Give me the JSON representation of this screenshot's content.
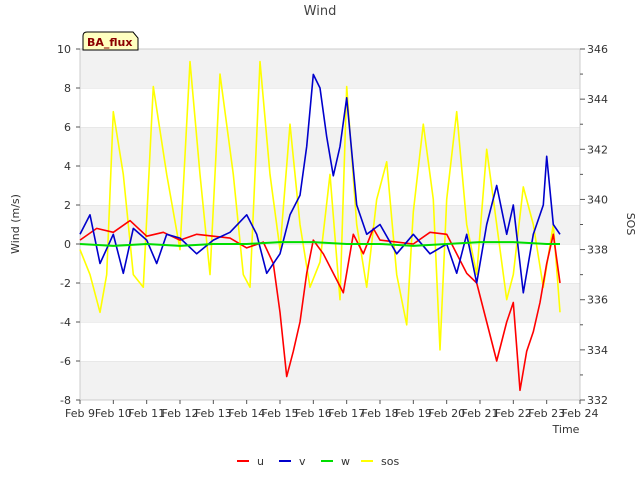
{
  "chart_data": {
    "type": "line",
    "title": "Wind",
    "badge": "BA_flux",
    "xlabel": "Time",
    "ylabel": "Wind (m/s)",
    "y2label": "SOS",
    "xlim": [
      9,
      24
    ],
    "ylim": [
      -8,
      10
    ],
    "y2lim": [
      332,
      346
    ],
    "x_ticks": [
      9,
      10,
      11,
      12,
      13,
      14,
      15,
      16,
      17,
      18,
      19,
      20,
      21,
      22,
      23,
      24
    ],
    "x_tick_labels": [
      "Feb 9",
      "Feb 10",
      "Feb 11",
      "Feb 12",
      "Feb 13",
      "Feb 14",
      "Feb 15",
      "Feb 16",
      "Feb 17",
      "Feb 18",
      "Feb 19",
      "Feb 20",
      "Feb 21",
      "Feb 22",
      "Feb 23",
      "Feb 24"
    ],
    "y_ticks": [
      -8,
      -6,
      -4,
      -2,
      0,
      2,
      4,
      6,
      8,
      10
    ],
    "y2_ticks": [
      332,
      334,
      336,
      338,
      340,
      342,
      344,
      346
    ],
    "grid": "horizontal bands",
    "legend_position": "bottom",
    "colors": {
      "u": "#ff0000",
      "v": "#0000cc",
      "w": "#00dd00",
      "sos": "#ffff00"
    },
    "series": [
      {
        "name": "u",
        "axis": "left",
        "x": [
          9.0,
          9.5,
          10.0,
          10.5,
          11.0,
          11.5,
          12.0,
          12.5,
          13.0,
          13.5,
          14.0,
          14.5,
          14.8,
          15.0,
          15.2,
          15.4,
          15.6,
          15.8,
          16.0,
          16.3,
          16.6,
          16.9,
          17.2,
          17.5,
          17.8,
          18.0,
          18.5,
          19.0,
          19.5,
          20.0,
          20.3,
          20.6,
          20.9,
          21.2,
          21.5,
          21.8,
          22.0,
          22.2,
          22.4,
          22.6,
          22.8,
          23.0,
          23.2,
          23.4
        ],
        "values": [
          0.2,
          0.8,
          0.6,
          1.2,
          0.4,
          0.6,
          0.2,
          0.5,
          0.4,
          0.3,
          -0.2,
          0.1,
          -1.0,
          -3.5,
          -6.8,
          -5.5,
          -4.0,
          -1.5,
          0.2,
          -0.5,
          -1.5,
          -2.5,
          0.5,
          -0.5,
          0.8,
          0.2,
          0.1,
          0.0,
          0.6,
          0.5,
          -0.5,
          -1.5,
          -2.0,
          -4.0,
          -6.0,
          -4.0,
          -3.0,
          -7.5,
          -5.5,
          -4.5,
          -3.0,
          -1.0,
          0.5,
          -2.0
        ]
      },
      {
        "name": "v",
        "axis": "left",
        "x": [
          9.0,
          9.3,
          9.6,
          10.0,
          10.3,
          10.6,
          11.0,
          11.3,
          11.6,
          12.0,
          12.5,
          13.0,
          13.5,
          14.0,
          14.3,
          14.6,
          15.0,
          15.3,
          15.6,
          15.8,
          16.0,
          16.2,
          16.4,
          16.6,
          16.8,
          17.0,
          17.3,
          17.6,
          18.0,
          18.5,
          19.0,
          19.5,
          20.0,
          20.3,
          20.6,
          20.9,
          21.2,
          21.5,
          21.8,
          22.0,
          22.3,
          22.6,
          22.9,
          23.0,
          23.2,
          23.4
        ],
        "values": [
          0.5,
          1.5,
          -1.0,
          0.5,
          -1.5,
          0.8,
          0.2,
          -1.0,
          0.5,
          0.3,
          -0.5,
          0.2,
          0.6,
          1.5,
          0.5,
          -1.5,
          -0.5,
          1.5,
          2.5,
          5.0,
          8.7,
          8.0,
          5.5,
          3.5,
          5.0,
          7.5,
          2.0,
          0.5,
          1.0,
          -0.5,
          0.5,
          -0.5,
          0.0,
          -1.5,
          0.5,
          -2.0,
          1.0,
          3.0,
          0.5,
          2.0,
          -2.5,
          0.5,
          2.0,
          4.5,
          1.0,
          0.5
        ]
      },
      {
        "name": "w",
        "axis": "left",
        "x": [
          9.0,
          10.0,
          11.0,
          12.0,
          13.0,
          14.0,
          15.0,
          16.0,
          17.0,
          18.0,
          19.0,
          20.0,
          21.0,
          22.0,
          23.0,
          23.4
        ],
        "values": [
          0.0,
          -0.1,
          0.0,
          -0.1,
          0.0,
          0.0,
          0.1,
          0.1,
          0.0,
          0.0,
          -0.1,
          0.0,
          0.1,
          0.1,
          0.0,
          0.0
        ]
      },
      {
        "name": "sos",
        "axis": "right",
        "x": [
          9.0,
          9.3,
          9.6,
          9.8,
          10.0,
          10.3,
          10.6,
          10.9,
          11.2,
          11.6,
          12.0,
          12.3,
          12.6,
          12.9,
          13.2,
          13.6,
          13.9,
          14.1,
          14.4,
          14.7,
          15.0,
          15.3,
          15.6,
          15.9,
          16.2,
          16.5,
          16.8,
          17.0,
          17.3,
          17.6,
          17.9,
          18.2,
          18.5,
          18.8,
          19.0,
          19.3,
          19.6,
          19.8,
          20.0,
          20.3,
          20.6,
          20.9,
          21.2,
          21.5,
          21.8,
          22.0,
          22.3,
          22.6,
          22.9,
          23.2,
          23.4
        ],
        "values": [
          338.0,
          337.0,
          335.5,
          337.0,
          343.5,
          341.0,
          337.0,
          336.5,
          344.5,
          341.0,
          338.0,
          345.5,
          341.0,
          337.0,
          345.0,
          341.0,
          337.0,
          336.5,
          345.5,
          341.0,
          338.0,
          343.0,
          339.0,
          336.5,
          337.5,
          341.0,
          336.0,
          344.5,
          339.0,
          336.5,
          340.0,
          341.5,
          337.0,
          335.0,
          339.5,
          343.0,
          340.0,
          334.0,
          340.0,
          343.5,
          339.0,
          337.0,
          342.0,
          339.0,
          336.0,
          337.0,
          340.5,
          339.0,
          336.5,
          339.0,
          335.5
        ]
      }
    ]
  }
}
